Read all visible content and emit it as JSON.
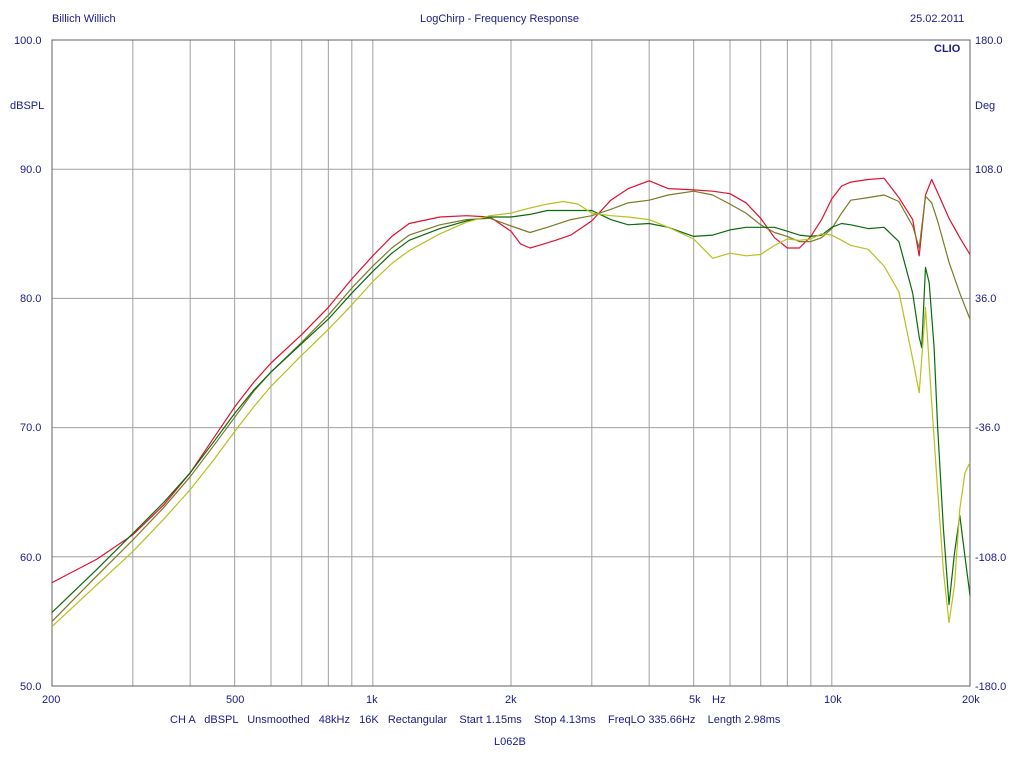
{
  "header": {
    "left": "Billich Willich",
    "center": "LogChirp - Frequency Response",
    "right": "25.02.2011"
  },
  "brand": "CLIO",
  "left_axis": {
    "unit": "dBSPL",
    "ticks": [
      "100.0",
      "90.0",
      "80.0",
      "70.0",
      "60.0",
      "50.0"
    ]
  },
  "right_axis": {
    "unit": "Deg",
    "ticks": [
      "180.0",
      "108.0",
      "36.0",
      "-36.0",
      "-108.0",
      "-180.0"
    ]
  },
  "x_axis": {
    "ticks": [
      "200",
      "500",
      "1k",
      "2k",
      "5k",
      "Hz",
      "10k",
      "20k"
    ]
  },
  "footer": {
    "settings": "CH A   dBSPL   Unsmoothed   48kHz   16K   Rectangular    Start 1.15ms    Stop 4.13ms    FreqLO 335.66Hz    Length 2.98ms",
    "name": "L062B"
  },
  "colors": {
    "axis_text": "#1a1a8c",
    "grid": "#a0a0a0",
    "red": "#e01030",
    "olive": "#7a7a28",
    "green": "#0a6a0a",
    "yellow": "#b8c020"
  },
  "chart_data": {
    "type": "line",
    "title": "LogChirp - Frequency Response",
    "xlabel": "Hz",
    "ylabel": "dBSPL",
    "y2label": "Deg",
    "x_scale": "log",
    "xlim": [
      200,
      20000
    ],
    "ylim": [
      50,
      100
    ],
    "y2lim": [
      -180,
      180
    ],
    "grid": true,
    "series": [
      {
        "color": "#e01030",
        "x": [
          200,
          250,
          300,
          350,
          400,
          450,
          500,
          550,
          600,
          700,
          800,
          900,
          1000,
          1100,
          1200,
          1400,
          1600,
          1800,
          2000,
          2100,
          2200,
          2300,
          2500,
          2700,
          3000,
          3300,
          3600,
          4000,
          4400,
          5000,
          5500,
          6000,
          6500,
          7000,
          7500,
          8000,
          8500,
          9000,
          9500,
          10000,
          10500,
          11000,
          12000,
          13000,
          14000,
          15000,
          15500,
          16000,
          16500,
          17000,
          18000,
          19000,
          20000
        ],
        "y": [
          58.0,
          59.8,
          61.7,
          64.0,
          66.5,
          69.2,
          71.6,
          73.5,
          75.0,
          77.2,
          79.3,
          81.5,
          83.3,
          84.8,
          85.8,
          86.3,
          86.4,
          86.3,
          85.2,
          84.2,
          83.9,
          84.1,
          84.5,
          84.9,
          86.0,
          87.6,
          88.5,
          89.1,
          88.5,
          88.4,
          88.3,
          88.1,
          87.4,
          86.2,
          84.7,
          83.9,
          83.9,
          84.8,
          86.1,
          87.7,
          88.7,
          89.0,
          89.2,
          89.3,
          87.8,
          86.1,
          83.3,
          88.0,
          89.2,
          88.2,
          86.2,
          84.7,
          83.4
        ]
      },
      {
        "color": "#7a7a28",
        "x": [
          200,
          250,
          300,
          350,
          400,
          450,
          500,
          550,
          600,
          700,
          800,
          900,
          1000,
          1100,
          1200,
          1400,
          1600,
          1800,
          2000,
          2200,
          2400,
          2700,
          3000,
          3300,
          3600,
          4000,
          4400,
          5000,
          5500,
          6000,
          6500,
          7000,
          7500,
          8000,
          8500,
          9000,
          9500,
          10000,
          10500,
          11000,
          12000,
          13000,
          14000,
          15000,
          15500,
          16000,
          16500,
          17000,
          18000,
          19000,
          20000
        ],
        "y": [
          55.0,
          58.5,
          61.3,
          63.8,
          66.2,
          68.6,
          70.8,
          72.8,
          74.3,
          76.6,
          78.7,
          80.8,
          82.5,
          83.9,
          84.9,
          85.7,
          86.1,
          86.2,
          85.6,
          85.1,
          85.5,
          86.1,
          86.4,
          86.9,
          87.4,
          87.6,
          88.0,
          88.3,
          88.0,
          87.3,
          86.6,
          85.7,
          85.1,
          84.8,
          84.4,
          84.4,
          84.7,
          85.4,
          86.6,
          87.6,
          87.8,
          88.0,
          87.5,
          85.6,
          83.9,
          87.9,
          87.4,
          86.0,
          82.8,
          80.4,
          78.4
        ]
      },
      {
        "color": "#0a6a0a",
        "x": [
          200,
          250,
          300,
          350,
          400,
          450,
          500,
          550,
          600,
          700,
          800,
          900,
          1000,
          1100,
          1200,
          1400,
          1600,
          1800,
          2000,
          2200,
          2400,
          2700,
          3000,
          3300,
          3600,
          4000,
          4400,
          5000,
          5500,
          6000,
          6500,
          7000,
          7500,
          8000,
          8500,
          9000,
          9500,
          10000,
          10500,
          11000,
          12000,
          13000,
          14000,
          15000,
          15500,
          15700,
          16000,
          16300,
          16700,
          17000,
          17500,
          18000,
          18500,
          19000,
          19500,
          20000
        ],
        "y": [
          55.7,
          59.0,
          61.8,
          64.2,
          66.5,
          68.9,
          71.1,
          72.9,
          74.3,
          76.5,
          78.4,
          80.4,
          82.1,
          83.5,
          84.5,
          85.4,
          86.0,
          86.3,
          86.3,
          86.5,
          86.8,
          86.8,
          86.8,
          86.1,
          85.7,
          85.8,
          85.5,
          84.8,
          84.9,
          85.3,
          85.5,
          85.5,
          85.5,
          85.2,
          84.9,
          84.8,
          84.9,
          85.5,
          85.8,
          85.7,
          85.4,
          85.5,
          84.4,
          80.4,
          77.0,
          76.2,
          82.4,
          81.2,
          76.2,
          70.1,
          62.2,
          56.3,
          60.3,
          63.2,
          60.0,
          57.0
        ]
      },
      {
        "color": "#b8c020",
        "x": [
          200,
          250,
          300,
          350,
          400,
          450,
          500,
          550,
          600,
          700,
          800,
          900,
          1000,
          1100,
          1200,
          1400,
          1600,
          1800,
          2000,
          2200,
          2400,
          2600,
          2800,
          3000,
          3300,
          3600,
          4000,
          4400,
          5000,
          5500,
          6000,
          6500,
          7000,
          7500,
          8000,
          8500,
          9000,
          9500,
          10000,
          10500,
          11000,
          12000,
          13000,
          14000,
          15000,
          15500,
          16000,
          16500,
          17000,
          17500,
          18000,
          18500,
          19000,
          19500,
          20000
        ],
        "y": [
          54.6,
          57.8,
          60.4,
          62.9,
          65.2,
          67.5,
          69.7,
          71.6,
          73.2,
          75.6,
          77.6,
          79.5,
          81.3,
          82.7,
          83.7,
          85.0,
          85.9,
          86.4,
          86.6,
          87.0,
          87.3,
          87.5,
          87.3,
          86.6,
          86.4,
          86.3,
          86.1,
          85.5,
          84.6,
          83.1,
          83.5,
          83.3,
          83.4,
          84.1,
          84.6,
          84.5,
          84.6,
          85.0,
          84.9,
          84.5,
          84.1,
          83.8,
          82.5,
          80.5,
          75.3,
          72.7,
          79.3,
          71.9,
          65.2,
          58.9,
          54.9,
          57.8,
          63.7,
          66.5,
          67.3
        ]
      }
    ]
  }
}
